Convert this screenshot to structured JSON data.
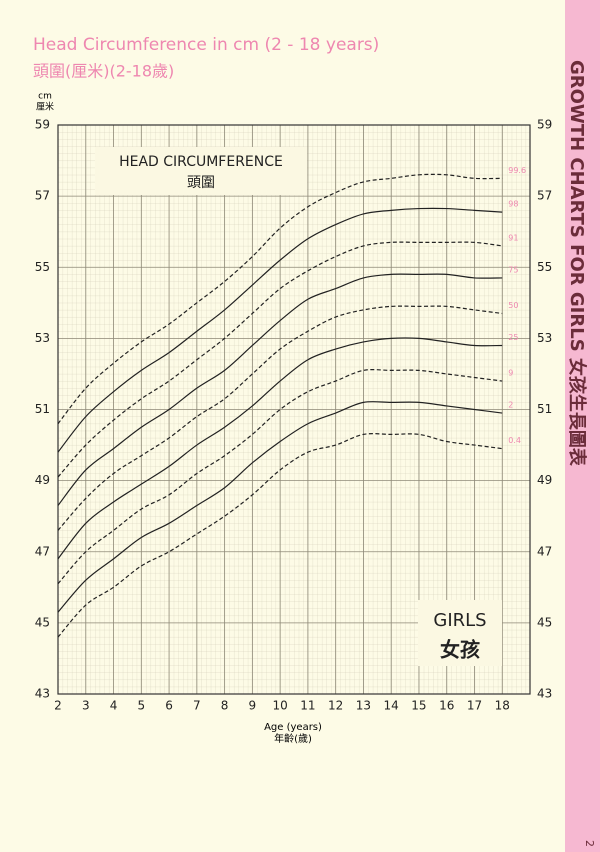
{
  "chart_data": {
    "type": "line",
    "title": "Head Circumference in cm (2 - 18 years)",
    "subtitle": "頭圍(厘米)(2-18歲)",
    "y_label": "cm",
    "y_label_zh": "厘米",
    "x_label": "Age (years)",
    "x_label_zh": "年齡(歲)",
    "chart_label": "HEAD CIRCUMFERENCE",
    "chart_label_zh": "頭圍",
    "sex_label": "GIRLS",
    "sex_label_zh": "女孩",
    "x": [
      2,
      3,
      4,
      5,
      6,
      7,
      8,
      9,
      10,
      11,
      12,
      13,
      14,
      15,
      16,
      17,
      18
    ],
    "xlim": [
      2,
      19
    ],
    "xticks": [
      2,
      3,
      4,
      5,
      6,
      7,
      8,
      9,
      10,
      11,
      12,
      13,
      14,
      15,
      16,
      17,
      18
    ],
    "ylim": [
      43,
      59
    ],
    "yticks": [
      43,
      45,
      47,
      49,
      51,
      53,
      55,
      57,
      59
    ],
    "grid": true,
    "label_color": "#ee87b0",
    "series": [
      {
        "name": "99.6",
        "color": "#222222",
        "style": "dashed",
        "values": [
          50.6,
          51.6,
          52.3,
          52.9,
          53.4,
          54.0,
          54.6,
          55.3,
          56.1,
          56.7,
          57.1,
          57.4,
          57.5,
          57.6,
          57.6,
          57.5,
          57.5
        ]
      },
      {
        "name": "98",
        "color": "#222222",
        "style": "solid",
        "values": [
          49.8,
          50.8,
          51.5,
          52.1,
          52.6,
          53.2,
          53.8,
          54.5,
          55.2,
          55.8,
          56.2,
          56.5,
          56.6,
          56.65,
          56.65,
          56.6,
          56.55
        ]
      },
      {
        "name": "91",
        "color": "#222222",
        "style": "dashed",
        "values": [
          49.1,
          50.0,
          50.7,
          51.3,
          51.8,
          52.4,
          53.0,
          53.7,
          54.4,
          54.9,
          55.3,
          55.6,
          55.7,
          55.7,
          55.7,
          55.7,
          55.6
        ]
      },
      {
        "name": "75",
        "color": "#222222",
        "style": "solid",
        "values": [
          48.3,
          49.3,
          49.9,
          50.5,
          51.0,
          51.6,
          52.1,
          52.8,
          53.5,
          54.1,
          54.4,
          54.7,
          54.8,
          54.8,
          54.8,
          54.7,
          54.7
        ]
      },
      {
        "name": "50",
        "color": "#222222",
        "style": "dashed",
        "values": [
          47.6,
          48.5,
          49.2,
          49.7,
          50.2,
          50.8,
          51.3,
          52.0,
          52.7,
          53.2,
          53.6,
          53.8,
          53.9,
          53.9,
          53.9,
          53.8,
          53.7
        ]
      },
      {
        "name": "25",
        "color": "#222222",
        "style": "solid",
        "values": [
          46.8,
          47.8,
          48.4,
          48.9,
          49.4,
          50.0,
          50.5,
          51.1,
          51.8,
          52.4,
          52.7,
          52.9,
          53.0,
          53.0,
          52.9,
          52.8,
          52.8
        ]
      },
      {
        "name": "9",
        "color": "#222222",
        "style": "dashed",
        "values": [
          46.1,
          47.0,
          47.6,
          48.2,
          48.6,
          49.2,
          49.7,
          50.3,
          51.0,
          51.5,
          51.8,
          52.1,
          52.1,
          52.1,
          52.0,
          51.9,
          51.8
        ]
      },
      {
        "name": "2",
        "color": "#222222",
        "style": "solid",
        "values": [
          45.3,
          46.2,
          46.8,
          47.4,
          47.8,
          48.3,
          48.8,
          49.5,
          50.1,
          50.6,
          50.9,
          51.2,
          51.2,
          51.2,
          51.1,
          51.0,
          50.9
        ]
      },
      {
        "name": "0.4",
        "color": "#222222",
        "style": "dashed",
        "values": [
          44.6,
          45.5,
          46.0,
          46.6,
          47.0,
          47.5,
          48.0,
          48.6,
          49.3,
          49.8,
          50.0,
          50.3,
          50.3,
          50.3,
          50.1,
          50.0,
          49.9
        ]
      }
    ]
  },
  "side_banner": {
    "title": "GROWTH CHARTS FOR GIRLS 女孩生長圖表",
    "page_number": "2"
  }
}
